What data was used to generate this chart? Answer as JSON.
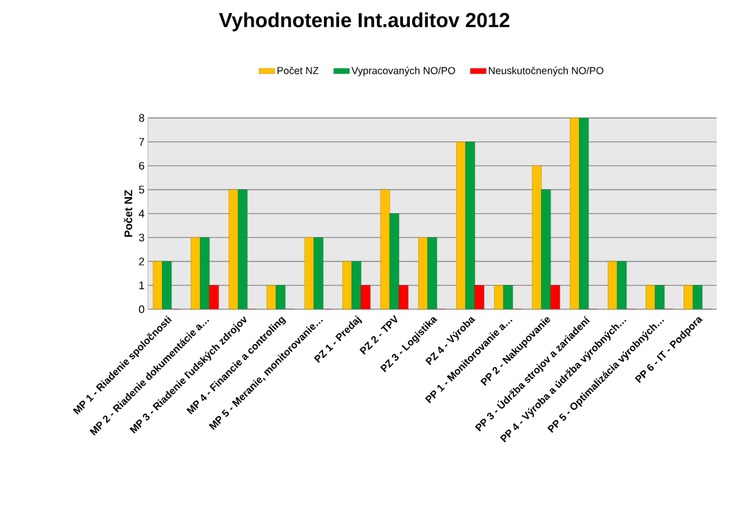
{
  "chart_data": {
    "type": "bar",
    "title": "Vyhodnotenie Int.auditov 2012",
    "ylabel": "Počet NZ",
    "categories": [
      "MP 1 - Riadenie spoločnosti",
      "MP 2 - Riadenie dokumentácie a…",
      "MP 3 - Riadenie ľudských zdrojov",
      "MP 4 - Financie a controling",
      "MP 5 - Meranie, monitorovanie…",
      "PZ 1 - Predaj",
      "PZ 2 - TPV",
      "PZ 3 - Logistika",
      "PZ 4 - Výroba",
      "PP 1 - Monitorovanie a…",
      "PP 2 - Nakupovanie",
      "PP 3 - Údržba strojov a zariadení",
      "PP 4 - Výroba a údržba výrobných…",
      "PP 5 - Optimalizácia výrobných…",
      "PP 6 - IT - Podpora"
    ],
    "series": [
      {
        "name": "Počet NZ",
        "color": "#ffc000",
        "values": [
          2,
          3,
          5,
          1,
          3,
          2,
          5,
          3,
          7,
          1,
          6,
          8,
          2,
          1,
          1
        ]
      },
      {
        "name": "Vypracovaných NO/PO",
        "color": "#00a040",
        "values": [
          2,
          3,
          5,
          1,
          3,
          2,
          4,
          3,
          7,
          1,
          5,
          8,
          2,
          1,
          1
        ]
      },
      {
        "name": "Neuskutočnených NO/PO",
        "color": "#ff0000",
        "values": [
          0,
          1,
          0,
          0,
          0,
          1,
          1,
          0,
          1,
          0,
          1,
          0,
          0,
          0,
          0
        ]
      }
    ],
    "ylim": [
      0,
      8
    ],
    "yticks": [
      0,
      1,
      2,
      3,
      4,
      5,
      6,
      7,
      8
    ],
    "grid": "y",
    "legend": "top"
  }
}
